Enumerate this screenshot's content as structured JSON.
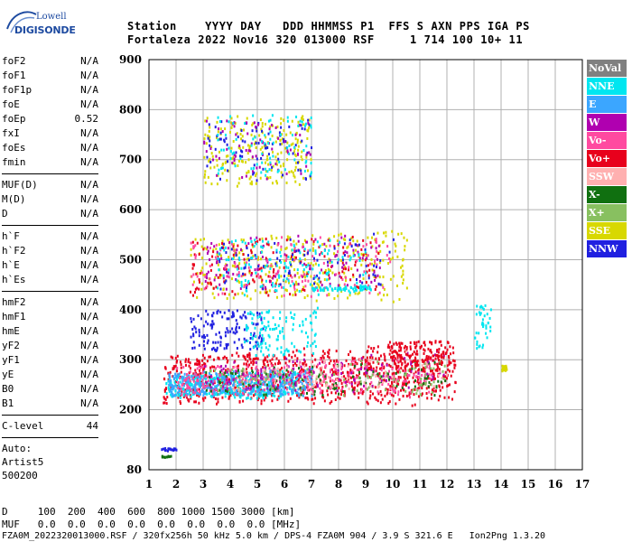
{
  "logo": {
    "line1": "Lowell",
    "line2": "DIGISONDE"
  },
  "header": {
    "line1": "Station    YYYY DAY   DDD HHMMSS P1  FFS S AXN PPS IGA PS",
    "line2": "Fortaleza 2022 Nov16 320 013000 RSF     1 714 100 10+ 11"
  },
  "params": {
    "group1": [
      {
        "k": "foF2",
        "v": "N/A"
      },
      {
        "k": "foF1",
        "v": "N/A"
      },
      {
        "k": "foF1p",
        "v": "N/A"
      },
      {
        "k": "foE",
        "v": "N/A"
      },
      {
        "k": "foEp",
        "v": "0.52"
      },
      {
        "k": "fxI",
        "v": "N/A"
      },
      {
        "k": "foEs",
        "v": "N/A"
      },
      {
        "k": "fmin",
        "v": "N/A"
      }
    ],
    "group2": [
      {
        "k": "MUF(D)",
        "v": "N/A"
      },
      {
        "k": "M(D)",
        "v": "N/A"
      },
      {
        "k": "D",
        "v": "N/A"
      }
    ],
    "group3": [
      {
        "k": "h`F",
        "v": "N/A"
      },
      {
        "k": "h`F2",
        "v": "N/A"
      },
      {
        "k": "h`E",
        "v": "N/A"
      },
      {
        "k": "h`Es",
        "v": "N/A"
      }
    ],
    "group4": [
      {
        "k": "hmF2",
        "v": "N/A"
      },
      {
        "k": "hmF1",
        "v": "N/A"
      },
      {
        "k": "hmE",
        "v": "N/A"
      },
      {
        "k": "yF2",
        "v": "N/A"
      },
      {
        "k": "yF1",
        "v": "N/A"
      },
      {
        "k": "yE",
        "v": "N/A"
      },
      {
        "k": "B0",
        "v": "N/A"
      },
      {
        "k": "B1",
        "v": "N/A"
      }
    ],
    "clevel": {
      "k": "C-level",
      "v": "44"
    },
    "auto": [
      "Auto:",
      "Artist5",
      "500200"
    ]
  },
  "legend": [
    {
      "label": "NoVal",
      "color": "#808080"
    },
    {
      "label": "NNE",
      "color": "#00e6f0"
    },
    {
      "label": "E",
      "color": "#3ba6ff"
    },
    {
      "label": "W",
      "color": "#b000b0"
    },
    {
      "label": "Vo-",
      "color": "#ff4aa0"
    },
    {
      "label": "Vo+",
      "color": "#e8001c"
    },
    {
      "label": "SSW",
      "color": "#ffb0b0"
    },
    {
      "label": "X-",
      "color": "#107010"
    },
    {
      "label": "X+",
      "color": "#88c060"
    },
    {
      "label": "SSE",
      "color": "#d8d800"
    },
    {
      "label": "NNW",
      "color": "#2020e0"
    }
  ],
  "footer": {
    "line1": "D     100  200  400  600  800 1000 1500 3000 [km]",
    "line2": "MUF   0.0  0.0  0.0  0.0  0.0  0.0  0.0  0.0 [MHz]",
    "line3": "FZA0M_2022320013000.RSF / 320fx256h 50 kHz 5.0 km / DPS-4 FZA0M 904 / 3.9 S 321.6 E   Ion2Png 1.3.20"
  },
  "chart_data": {
    "type": "scatter",
    "xlim": [
      1,
      17
    ],
    "ylim": [
      80,
      900
    ],
    "xticks": [
      1,
      2,
      3,
      4,
      5,
      6,
      7,
      8,
      9,
      10,
      11,
      12,
      13,
      14,
      15,
      16,
      17
    ],
    "yticks": [
      80,
      200,
      300,
      400,
      500,
      600,
      700,
      800,
      900
    ],
    "grid": true,
    "regions": [
      {
        "color_index": 5,
        "x": [
          1.5,
          12.3
        ],
        "y": [
          215,
          310
        ],
        "density": 900
      },
      {
        "color_index": 1,
        "x": [
          1.6,
          6.5
        ],
        "y": [
          225,
          270
        ],
        "density": 350
      },
      {
        "color_index": 2,
        "x": [
          1.7,
          7.0
        ],
        "y": [
          230,
          275
        ],
        "density": 350
      },
      {
        "color_index": 4,
        "x": [
          2.0,
          11.5
        ],
        "y": [
          230,
          290
        ],
        "density": 300
      },
      {
        "color_index": 7,
        "x": [
          3.0,
          12.0
        ],
        "y": [
          230,
          280
        ],
        "density": 120
      },
      {
        "color_index": 8,
        "x": [
          3.0,
          12.0
        ],
        "y": [
          235,
          285
        ],
        "density": 120
      },
      {
        "color_index": 3,
        "x": [
          3.0,
          12.0
        ],
        "y": [
          240,
          300
        ],
        "density": 120
      },
      {
        "color_index": 6,
        "x": [
          4.0,
          12.0
        ],
        "y": [
          240,
          300
        ],
        "density": 80
      },
      {
        "color_index": 5,
        "x": [
          9.8,
          12.1
        ],
        "y": [
          280,
          340
        ],
        "density": 120
      },
      {
        "color_index": 9,
        "x": [
          2.5,
          10.5
        ],
        "y": [
          420,
          545
        ],
        "density": 300
      },
      {
        "color_index": 5,
        "x": [
          2.5,
          9.5
        ],
        "y": [
          430,
          540
        ],
        "density": 160
      },
      {
        "color_index": 3,
        "x": [
          3.0,
          9.5
        ],
        "y": [
          440,
          545
        ],
        "density": 120
      },
      {
        "color_index": 4,
        "x": [
          2.5,
          10.0
        ],
        "y": [
          430,
          540
        ],
        "density": 120
      },
      {
        "color_index": 10,
        "x": [
          3.0,
          10.0
        ],
        "y": [
          440,
          540
        ],
        "density": 80
      },
      {
        "color_index": 1,
        "x": [
          3.5,
          9.0
        ],
        "y": [
          430,
          540
        ],
        "density": 140
      },
      {
        "color_index": 10,
        "x": [
          2.5,
          5.2
        ],
        "y": [
          320,
          400
        ],
        "density": 140
      },
      {
        "color_index": 1,
        "x": [
          4.5,
          7.2
        ],
        "y": [
          310,
          400
        ],
        "density": 120
      },
      {
        "color_index": 9,
        "x": [
          3.0,
          7.0
        ],
        "y": [
          650,
          790
        ],
        "density": 220
      },
      {
        "color_index": 10,
        "x": [
          3.0,
          7.0
        ],
        "y": [
          660,
          780
        ],
        "density": 80
      },
      {
        "color_index": 3,
        "x": [
          3.0,
          7.0
        ],
        "y": [
          660,
          780
        ],
        "density": 70
      },
      {
        "color_index": 1,
        "x": [
          3.5,
          7.0
        ],
        "y": [
          670,
          790
        ],
        "density": 80
      },
      {
        "color_index": 1,
        "x": [
          13.0,
          13.6
        ],
        "y": [
          320,
          410
        ],
        "density": 40
      },
      {
        "color_index": 9,
        "x": [
          14.0,
          14.2
        ],
        "y": [
          280,
          290
        ],
        "density": 30
      },
      {
        "color_index": 1,
        "x": [
          7.0,
          9.2
        ],
        "y": [
          440,
          446
        ],
        "density": 60
      },
      {
        "color_index": 10,
        "x": [
          1.4,
          2.0
        ],
        "y": [
          120,
          125
        ],
        "density": 20
      },
      {
        "color_index": 7,
        "x": [
          1.4,
          1.8
        ],
        "y": [
          106,
          110
        ],
        "density": 10
      }
    ]
  }
}
